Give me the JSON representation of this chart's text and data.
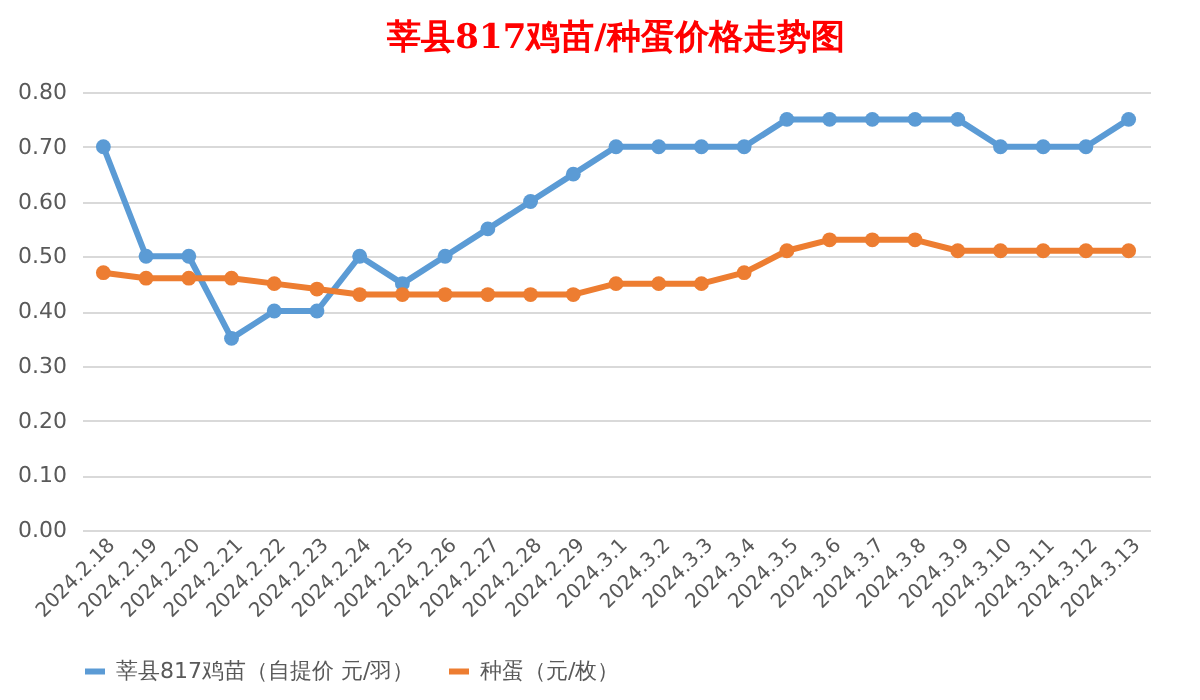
{
  "chart_data": {
    "type": "line",
    "title": "莘县817鸡苗/种蛋价格走势图",
    "categories": [
      "2024.2.18",
      "2024.2.19",
      "2024.2.20",
      "2024.2.21",
      "2024.2.22",
      "2024.2.23",
      "2024.2.24",
      "2024.2.25",
      "2024.2.26",
      "2024.2.27",
      "2024.2.28",
      "2024.2.29",
      "2024.3.1",
      "2024.3.2",
      "2024.3.3",
      "2024.3.4",
      "2024.3.5",
      "2024.3.6",
      "2024.3.7",
      "2024.3.8",
      "2024.3.9",
      "2024.3.10",
      "2024.3.11",
      "2024.3.12",
      "2024.3.13"
    ],
    "series": [
      {
        "name": "莘县817鸡苗（自提价 元/羽）",
        "color": "#5b9bd5",
        "values": [
          0.7,
          0.5,
          0.5,
          0.35,
          0.4,
          0.4,
          0.5,
          0.45,
          0.5,
          0.55,
          0.6,
          0.65,
          0.7,
          0.7,
          0.7,
          0.7,
          0.75,
          0.75,
          0.75,
          0.75,
          0.75,
          0.7,
          0.7,
          0.7,
          0.75
        ]
      },
      {
        "name": "种蛋（元/枚）",
        "color": "#ed7d31",
        "values": [
          0.47,
          0.46,
          0.46,
          0.46,
          0.45,
          0.44,
          0.43,
          0.43,
          0.43,
          0.43,
          0.43,
          0.43,
          0.45,
          0.45,
          0.45,
          0.47,
          0.51,
          0.53,
          0.53,
          0.53,
          0.51,
          0.51,
          0.51,
          0.51,
          0.51
        ]
      }
    ],
    "ylim": [
      0,
      0.8
    ],
    "yticks": [
      {
        "value": 0,
        "label": "0.00"
      },
      {
        "value": 0.1,
        "label": "0.10"
      },
      {
        "value": 0.2,
        "label": "0.20"
      },
      {
        "value": 0.3,
        "label": "0.30"
      },
      {
        "value": 0.4,
        "label": "0.40"
      },
      {
        "value": 0.5,
        "label": "0.50"
      },
      {
        "value": 0.6,
        "label": "0.60"
      },
      {
        "value": 0.7,
        "label": "0.70"
      },
      {
        "value": 0.8,
        "label": "0.80"
      }
    ],
    "grid": "y",
    "legend": "bottom",
    "marker": "circle",
    "line_style": "solid"
  }
}
